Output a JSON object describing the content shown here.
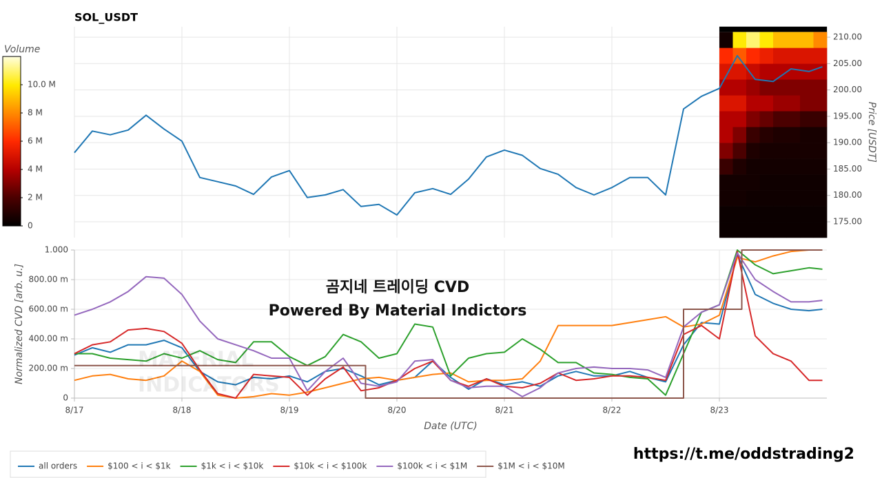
{
  "chart_data": [
    {
      "type": "line",
      "title": "SOL_USDT",
      "ylabel": "Price [USDT]",
      "yaxis_side": "right",
      "grid": true,
      "x": [
        0,
        4,
        8,
        12,
        16,
        20,
        24,
        28,
        32,
        36,
        40,
        44,
        48,
        52,
        56,
        60,
        64,
        68,
        72,
        76,
        80,
        84,
        88,
        92,
        96,
        100,
        104,
        108,
        112,
        116,
        120,
        124,
        128,
        132,
        136,
        140,
        144,
        148,
        152,
        156,
        160,
        164,
        167
      ],
      "xlim": [
        0,
        168
      ],
      "xticks": [
        0,
        24,
        48,
        72,
        96,
        120,
        144
      ],
      "ylim": [
        172,
        212
      ],
      "yticks": [
        {
          "value": 175,
          "label": "175.00"
        },
        {
          "value": 180,
          "label": "180.00"
        },
        {
          "value": 185,
          "label": "185.00"
        },
        {
          "value": 190,
          "label": "190.00"
        },
        {
          "value": 195,
          "label": "195.00"
        },
        {
          "value": 200,
          "label": "200.00"
        },
        {
          "value": 205,
          "label": "205.00"
        },
        {
          "value": 210,
          "label": "210.00"
        }
      ],
      "series": [
        {
          "color": "#1f77b4",
          "values": [
            188.1,
            192.2,
            191.5,
            192.4,
            195.2,
            192.6,
            190.3,
            183.4,
            182.6,
            181.8,
            180.2,
            183.5,
            184.7,
            179.6,
            180.1,
            181.1,
            177.9,
            178.3,
            176.3,
            180.5,
            181.3,
            180.2,
            183.1,
            187.3,
            188.6,
            187.6,
            185.1,
            184.0,
            181.5,
            180.1,
            181.5,
            183.4,
            183.4,
            180.1,
            196.4,
            198.8,
            200.3,
            206.5,
            202.0,
            201.6,
            204.0,
            203.5,
            204.4
          ]
        }
      ],
      "heatmap": {
        "x_edges": [
          144,
          147,
          150,
          153,
          156,
          159,
          162,
          165,
          168
        ],
        "y_edges": [
          172,
          175,
          178,
          181,
          184,
          187,
          190,
          193,
          196,
          199,
          202,
          205,
          208,
          211
        ],
        "values": [
          [
            0.3,
            0.3,
            0.3,
            0.3,
            0.3,
            0.3,
            0.3,
            0.3
          ],
          [
            0.3,
            0.3,
            0.3,
            0.3,
            0.3,
            0.3,
            0.3,
            0.3
          ],
          [
            0.5,
            0.5,
            0.4,
            0.4,
            0.4,
            0.4,
            0.4,
            0.4
          ],
          [
            0.5,
            0.5,
            0.5,
            0.4,
            0.4,
            0.4,
            0.4,
            0.4
          ],
          [
            1.5,
            0.8,
            0.5,
            0.5,
            0.5,
            0.5,
            0.5,
            0.5
          ],
          [
            3,
            2,
            0.8,
            0.6,
            0.6,
            0.6,
            0.6,
            0.6
          ],
          [
            4,
            3,
            1.5,
            1,
            0.8,
            0.8,
            0.6,
            0.6
          ],
          [
            4,
            4,
            3,
            2.5,
            2,
            2,
            1.5,
            1.5
          ],
          [
            5,
            5,
            4,
            4,
            3.5,
            3.5,
            3,
            3
          ],
          [
            4,
            4,
            3.5,
            3,
            3,
            3,
            3,
            3
          ],
          [
            5,
            5,
            4.5,
            4,
            4,
            4,
            4,
            4
          ],
          [
            6,
            7,
            6,
            5.5,
            5,
            5,
            5,
            5
          ],
          [
            0.5,
            10,
            11,
            10,
            9,
            9,
            9,
            8
          ]
        ]
      },
      "colorbar": {
        "label": "Volume",
        "clim": [
          0,
          12
        ],
        "ticks": [
          0,
          {
            "value": 2,
            "label": "2 M"
          },
          {
            "value": 4,
            "label": "4 M"
          },
          {
            "value": 6,
            "label": "6 M"
          },
          {
            "value": 8,
            "label": "8 M"
          },
          {
            "value": 10,
            "label": "10.0 M"
          }
        ]
      }
    },
    {
      "type": "line",
      "xlabel": "Date (UTC)",
      "ylabel": "Normalized CVD [arb. u.]",
      "yaxis_side": "left",
      "grid": true,
      "x": [
        0,
        4,
        8,
        12,
        16,
        20,
        24,
        28,
        32,
        36,
        40,
        44,
        48,
        52,
        56,
        60,
        64,
        68,
        72,
        76,
        80,
        84,
        88,
        92,
        96,
        100,
        104,
        108,
        112,
        116,
        120,
        124,
        128,
        132,
        136,
        140,
        144,
        148,
        152,
        156,
        160,
        164,
        167
      ],
      "xlim": [
        0,
        168
      ],
      "xticks": [
        {
          "value": 0,
          "label": "8/17"
        },
        {
          "value": 24,
          "label": "8/18"
        },
        {
          "value": 48,
          "label": "8/19"
        },
        {
          "value": 72,
          "label": "8/20"
        },
        {
          "value": 96,
          "label": "8/21"
        },
        {
          "value": 120,
          "label": "8/22"
        },
        {
          "value": 144,
          "label": "8/23"
        }
      ],
      "ylim": [
        0,
        1
      ],
      "yticks": [
        0,
        {
          "value": 0.2,
          "label": "200.00 m"
        },
        {
          "value": 0.4,
          "label": "400.00 m"
        },
        {
          "value": 0.6,
          "label": "600.00 m"
        },
        {
          "value": 0.8,
          "label": "800.00 m"
        },
        {
          "value": 1,
          "label": "1.000"
        }
      ],
      "legend": "bottom-left",
      "series": [
        {
          "name": "all orders",
          "color": "#1f77b4",
          "values": [
            0.29,
            0.34,
            0.31,
            0.36,
            0.36,
            0.39,
            0.34,
            0.18,
            0.11,
            0.09,
            0.14,
            0.13,
            0.15,
            0.11,
            0.18,
            0.2,
            0.15,
            0.09,
            0.12,
            0.14,
            0.25,
            0.14,
            0.06,
            0.13,
            0.09,
            0.11,
            0.08,
            0.15,
            0.18,
            0.15,
            0.15,
            0.18,
            0.14,
            0.11,
            0.36,
            0.51,
            0.5,
            0.97,
            0.7,
            0.64,
            0.6,
            0.59,
            0.6
          ]
        },
        {
          "name": "$100 < i < $1k",
          "color": "#ff7f0e",
          "values": [
            0.12,
            0.15,
            0.16,
            0.13,
            0.12,
            0.15,
            0.25,
            0.18,
            0.02,
            0.0,
            0.01,
            0.03,
            0.02,
            0.04,
            0.07,
            0.1,
            0.13,
            0.14,
            0.12,
            0.14,
            0.16,
            0.17,
            0.11,
            0.12,
            0.12,
            0.13,
            0.25,
            0.49,
            0.49,
            0.49,
            0.49,
            0.51,
            0.53,
            0.55,
            0.48,
            0.5,
            0.56,
            0.95,
            0.92,
            0.96,
            0.99,
            1.0,
            1.0
          ]
        },
        {
          "name": "$1k < i < $10k",
          "color": "#2ca02c",
          "values": [
            0.3,
            0.3,
            0.27,
            0.26,
            0.25,
            0.3,
            0.27,
            0.32,
            0.26,
            0.24,
            0.38,
            0.38,
            0.28,
            0.22,
            0.28,
            0.43,
            0.38,
            0.27,
            0.3,
            0.5,
            0.48,
            0.15,
            0.27,
            0.3,
            0.31,
            0.4,
            0.33,
            0.24,
            0.24,
            0.17,
            0.16,
            0.14,
            0.13,
            0.02,
            0.3,
            0.58,
            0.63,
            1.0,
            0.9,
            0.84,
            0.86,
            0.88,
            0.87
          ]
        },
        {
          "name": "$10k < i < $100k",
          "color": "#d62728",
          "values": [
            0.3,
            0.36,
            0.38,
            0.46,
            0.47,
            0.45,
            0.37,
            0.19,
            0.03,
            0.0,
            0.16,
            0.15,
            0.14,
            0.02,
            0.13,
            0.21,
            0.05,
            0.07,
            0.12,
            0.2,
            0.25,
            0.12,
            0.08,
            0.13,
            0.08,
            0.07,
            0.1,
            0.17,
            0.12,
            0.13,
            0.15,
            0.15,
            0.14,
            0.12,
            0.43,
            0.49,
            0.4,
            0.99,
            0.42,
            0.3,
            0.25,
            0.12,
            0.12
          ]
        },
        {
          "name": "$100k < i < $1M",
          "color": "#9467bd",
          "values": [
            0.56,
            0.6,
            0.65,
            0.72,
            0.82,
            0.81,
            0.7,
            0.52,
            0.4,
            0.36,
            0.32,
            0.27,
            0.27,
            0.05,
            0.18,
            0.27,
            0.1,
            0.08,
            0.11,
            0.25,
            0.26,
            0.12,
            0.07,
            0.08,
            0.08,
            0.01,
            0.07,
            0.17,
            0.2,
            0.21,
            0.2,
            0.2,
            0.19,
            0.14,
            0.48,
            0.58,
            0.63,
            0.98,
            0.8,
            0.72,
            0.65,
            0.65,
            0.66
          ]
        },
        {
          "name": "$1M < i < $10M",
          "color": "#8c564b",
          "x": [
            0,
            65,
            65,
            136,
            136,
            149,
            149,
            167
          ],
          "values": [
            0.22,
            0.22,
            0,
            0,
            0.6,
            0.6,
            1.0,
            1.0
          ]
        }
      ]
    }
  ],
  "annotations": {
    "watermark_title": "곰지네 트레이딩 CVD",
    "watermark_subtitle": "Powered By Material Indictors",
    "logo_line1": "MATERIAL",
    "logo_line2": "INDICATORS",
    "link": "https://t.me/oddstrading2"
  }
}
